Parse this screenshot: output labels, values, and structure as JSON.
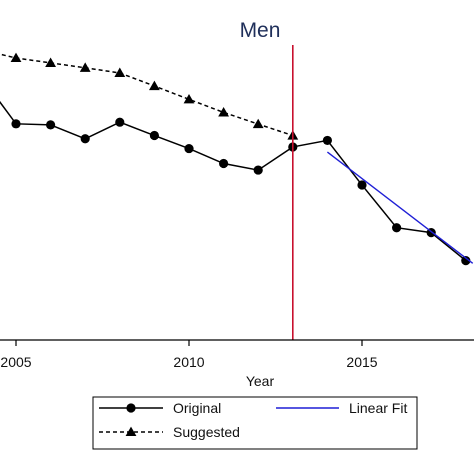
{
  "chart_data": {
    "type": "line",
    "title": "Men",
    "xlabel": "Year",
    "ylabel": "",
    "xlim": [
      2004.5,
      2018.2
    ],
    "ylim": [
      0,
      1
    ],
    "y_relative_scale": true,
    "x_ticks": [
      2005,
      2010,
      2015
    ],
    "x_tick_labels": [
      "2005",
      "2010",
      "2015"
    ],
    "grid": false,
    "legend_position": "bottom",
    "colors": {
      "original": "#000000",
      "suggested": "#000000",
      "linear_fit": "#1f1fd6",
      "vertical_marker": "#c8102e",
      "title": "#1f2f5a"
    },
    "vertical_marker": {
      "x": 2013
    },
    "series": [
      {
        "name": "Original",
        "style": "solid",
        "marker": "circle",
        "x": [
          2004,
          2005,
          2006,
          2007,
          2008,
          2009,
          2010,
          2011,
          2012,
          2013,
          2014,
          2015,
          2016,
          2017,
          2018
        ],
        "y": [
          0.93,
          0.758,
          0.754,
          0.703,
          0.764,
          0.715,
          0.667,
          0.612,
          0.588,
          0.673,
          0.697,
          0.533,
          0.376,
          0.358,
          0.255
        ]
      },
      {
        "name": "Suggested",
        "style": "dashed",
        "marker": "triangle",
        "x": [
          2004,
          2005,
          2006,
          2007,
          2008,
          2009,
          2010,
          2011,
          2012,
          2013
        ],
        "y": [
          1.03,
          1.0,
          0.982,
          0.964,
          0.945,
          0.897,
          0.848,
          0.8,
          0.757,
          0.715
        ]
      },
      {
        "name": "Linear Fit",
        "style": "solid",
        "marker": "none",
        "x": [
          2014,
          2018.2
        ],
        "y": [
          0.654,
          0.245
        ]
      }
    ],
    "legend": [
      {
        "label": "Original",
        "series": "Original"
      },
      {
        "label": "Linear Fit",
        "series": "Linear Fit"
      },
      {
        "label": "Suggested",
        "series": "Suggested"
      }
    ]
  }
}
